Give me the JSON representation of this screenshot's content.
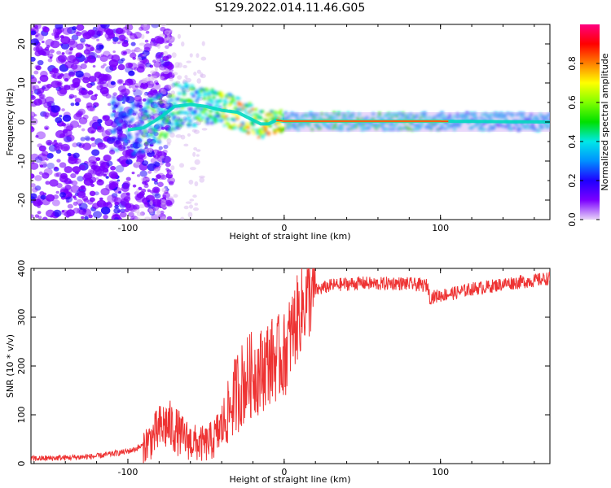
{
  "title": "S129.2022.014.11.46.G05",
  "chart_data": [
    {
      "type": "heatmap",
      "xlabel": "Height of straight line (km)",
      "ylabel": "Frequency (Hz)",
      "xlim": [
        -162,
        170
      ],
      "ylim": [
        -25,
        25
      ],
      "x_ticks": [
        -100,
        0,
        100
      ],
      "y_ticks": [
        -20,
        -10,
        0,
        10,
        20
      ],
      "ridge": [
        {
          "x": -100,
          "y": -2.0
        },
        {
          "x": -90,
          "y": -1.5
        },
        {
          "x": -80,
          "y": 1.0
        },
        {
          "x": -70,
          "y": 4.0
        },
        {
          "x": -60,
          "y": 4.5
        },
        {
          "x": -50,
          "y": 4.0
        },
        {
          "x": -40,
          "y": 3.0
        },
        {
          "x": -30,
          "y": 2.5
        },
        {
          "x": -25,
          "y": 1.5
        },
        {
          "x": -20,
          "y": 0.5
        },
        {
          "x": -15,
          "y": -0.5
        },
        {
          "x": -10,
          "y": -0.5
        },
        {
          "x": -5,
          "y": 0.5
        },
        {
          "x": 0,
          "y": 0.2
        },
        {
          "x": 100,
          "y": 0.2
        },
        {
          "x": 170,
          "y": 0.0
        }
      ],
      "colorbar": {
        "label": "Normalized spectral amplitude",
        "range": [
          0,
          1
        ],
        "ticks": [
          "0.0",
          "0.2",
          "0.4",
          "0.6",
          "0.8"
        ],
        "colors": [
          "#e8d4f8",
          "#7b00ff",
          "#1f00ff",
          "#0090ff",
          "#00e8e8",
          "#00e000",
          "#80ff00",
          "#ffff00",
          "#ff8000",
          "#ff0000",
          "#ff0080"
        ]
      }
    },
    {
      "type": "line",
      "xlabel": "Height of straight line (km)",
      "ylabel": "SNR (10 * v/v)",
      "xlim": [
        -162,
        170
      ],
      "ylim": [
        0,
        400
      ],
      "x_ticks": [
        -100,
        0,
        100
      ],
      "y_ticks": [
        0,
        100,
        200,
        300,
        400
      ],
      "color": "#ee3333",
      "series": [
        {
          "x": [
            -162,
            -140,
            -120,
            -100,
            -95,
            -90,
            -85,
            -80,
            -75,
            -70,
            -65,
            -60,
            -55,
            -50,
            -45,
            -40,
            -35,
            -30,
            -25,
            -20,
            -15,
            -10,
            -5,
            0,
            5,
            10,
            15,
            20,
            25,
            30,
            40,
            50,
            60,
            70,
            80,
            90,
            92,
            93,
            100,
            110,
            120,
            130,
            140,
            150,
            160,
            170
          ],
          "y": [
            10,
            12,
            15,
            25,
            30,
            38,
            50,
            70,
            80,
            70,
            55,
            45,
            40,
            40,
            50,
            75,
            110,
            150,
            170,
            185,
            190,
            210,
            215,
            220,
            270,
            310,
            340,
            355,
            360,
            365,
            368,
            370,
            368,
            370,
            368,
            365,
            365,
            340,
            345,
            350,
            358,
            362,
            368,
            372,
            375,
            380
          ]
        }
      ]
    }
  ]
}
